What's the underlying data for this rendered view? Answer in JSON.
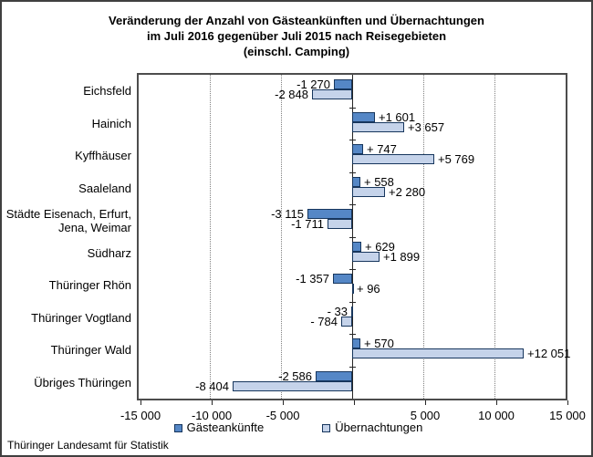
{
  "title": "Veränderung der Anzahl von Gästeankünften und Übernachtungen\nim Juli 2016 gegenüber Juli 2015 nach Reisegebieten\n(einschl. Camping)",
  "footer": "Thüringer Landesamt für Statistik",
  "colors": {
    "arrivals_fill": "#5587c6",
    "overnights_fill": "#c5d3ea",
    "bar_border": "#17365d",
    "grid": "#808080",
    "axis": "#262626",
    "plot_border": "#4d4d4d",
    "text": "#000000"
  },
  "legend": {
    "items": [
      {
        "label": "Gästeankünfte",
        "color_key": "arrivals_fill"
      },
      {
        "label": "Übernachtungen",
        "color_key": "overnights_fill"
      }
    ]
  },
  "chart_data": {
    "type": "bar",
    "orientation": "horizontal",
    "title": "Veränderung der Anzahl von Gästeankünften und Übernachtungen im Juli 2016 gegenüber Juli 2015 nach Reisegebieten (einschl. Camping)",
    "categories": [
      "Eichsfeld",
      "Hainich",
      "Kyffhäuser",
      "Saaleland",
      "Städte Eisenach, Erfurt,\nJena, Weimar",
      "Südharz",
      "Thüringer Rhön",
      "Thüringer Vogtland",
      "Thüringer Wald",
      "Übriges Thüringen"
    ],
    "series": [
      {
        "name": "Gästeankünfte",
        "values": [
          -1270,
          1601,
          747,
          558,
          -3115,
          629,
          -1357,
          -33,
          570,
          -2586
        ],
        "labels": [
          "-1 270",
          "+1 601",
          "+ 747",
          "+ 558",
          "-3 115",
          "+ 629",
          "-1 357",
          "- 33",
          "+ 570",
          "-2 586"
        ]
      },
      {
        "name": "Übernachtungen",
        "values": [
          -2848,
          3657,
          5769,
          2280,
          -1711,
          1899,
          96,
          -784,
          12051,
          -8404
        ],
        "labels": [
          "-2 848",
          "+3 657",
          "+5 769",
          "+2 280",
          "-1 711",
          "+1 899",
          "+ 96",
          "- 784",
          "+12 051",
          "-8 404"
        ]
      }
    ],
    "xlim": [
      -15000,
      15000
    ],
    "x_ticks": [
      -15000,
      -10000,
      -5000,
      0,
      5000,
      10000,
      15000
    ],
    "x_tick_labels": [
      "-15 000",
      "-10 000",
      "-5 000",
      "",
      "5 000",
      "10 000",
      "15 000"
    ],
    "grid": "vertical dotted gridlines at -10000, -5000, 5000, 10000; solid category axis at 0",
    "legend_position": "bottom"
  }
}
